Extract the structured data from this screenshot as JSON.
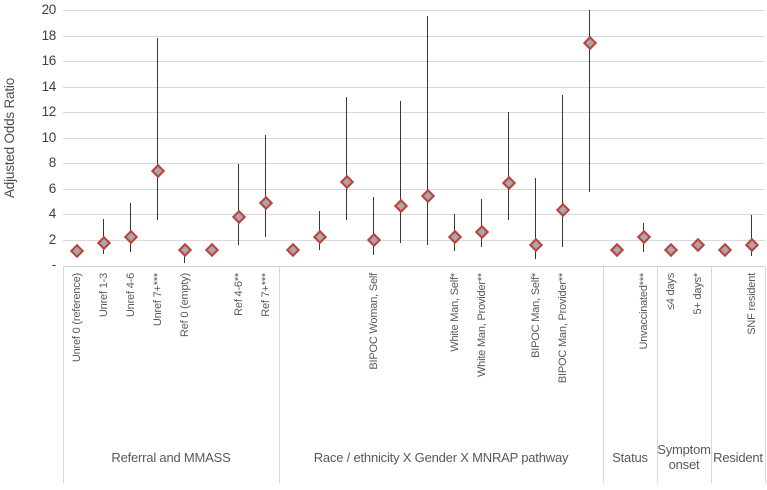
{
  "chart_data": {
    "type": "scatter",
    "subtype": "forest-plot-diamond-markers-with-ci-error-bars",
    "title": "",
    "xlabel": "",
    "ylabel": "Adjusted Odds Ratio",
    "ylim": [
      0,
      20
    ],
    "ytick_step": 2,
    "ytick_zero_label": "-",
    "grid": "horizontal",
    "legend": "none",
    "colors": {
      "marker_fill": "#a8a8a8",
      "marker_stroke": "#c0403c",
      "error_bar": "#383838",
      "gridline": "#d9d9d9",
      "text": "#595959"
    },
    "groups": [
      {
        "label": "Referral and MMASS",
        "points": [
          {
            "label": "Unref 0 (reference)",
            "aor": 1.1,
            "ci_low": null,
            "ci_high": null
          },
          {
            "label": "Unref 1-3",
            "aor": 1.7,
            "ci_low": 0.85,
            "ci_high": 3.6
          },
          {
            "label": "Unref 4-6",
            "aor": 2.2,
            "ci_low": 1.0,
            "ci_high": 4.9
          },
          {
            "label": "Unref 7+***",
            "aor": 7.4,
            "ci_low": 3.5,
            "ci_high": 17.8
          },
          {
            "label": "Ref 0 (empty)",
            "aor": 1.15,
            "ci_low": 0.15,
            "ci_high": 1.15
          },
          {
            "label": "",
            "aor": 1.15,
            "ci_low": null,
            "ci_high": null
          },
          {
            "label": "Ref 4-6**",
            "aor": 3.8,
            "ci_low": 1.6,
            "ci_high": 7.9
          },
          {
            "label": "Ref 7+***",
            "aor": 4.9,
            "ci_low": 2.2,
            "ci_high": 10.2
          }
        ]
      },
      {
        "label": "Race / ethnicity X Gender X MNRAP pathway",
        "points": [
          {
            "label": "",
            "aor": 1.15,
            "ci_low": null,
            "ci_high": null
          },
          {
            "label": "",
            "aor": 2.2,
            "ci_low": 1.2,
            "ci_high": 4.2
          },
          {
            "label": "",
            "aor": 6.5,
            "ci_low": 3.5,
            "ci_high": 13.2
          },
          {
            "label": "BIPOC Woman, Self",
            "aor": 2.0,
            "ci_low": 0.8,
            "ci_high": 5.3
          },
          {
            "label": "",
            "aor": 4.6,
            "ci_low": 1.7,
            "ci_high": 12.9
          },
          {
            "label": "",
            "aor": 5.4,
            "ci_low": 1.6,
            "ci_high": 19.5
          },
          {
            "label": "White Man, Self*",
            "aor": 2.2,
            "ci_low": 1.1,
            "ci_high": 4.0
          },
          {
            "label": "White Man, Provider**",
            "aor": 2.6,
            "ci_low": 1.4,
            "ci_high": 5.2
          },
          {
            "label": "",
            "aor": 6.4,
            "ci_low": 3.5,
            "ci_high": 12.0
          },
          {
            "label": "BIPOC Man, Self*",
            "aor": 1.6,
            "ci_low": 0.5,
            "ci_high": 6.8
          },
          {
            "label": "BIPOC Man, Provider**",
            "aor": 4.3,
            "ci_low": 1.4,
            "ci_high": 13.3
          },
          {
            "label": "",
            "aor": 17.4,
            "ci_low": 5.7,
            "ci_high": 20.0
          }
        ]
      },
      {
        "label": "Status",
        "points": [
          {
            "label": "",
            "aor": 1.15,
            "ci_low": null,
            "ci_high": null
          },
          {
            "label": "Unvaccinated***",
            "aor": 2.2,
            "ci_low": 1.0,
            "ci_high": 3.3
          }
        ]
      },
      {
        "label": "Symptom onset",
        "points": [
          {
            "label": "≤4 days",
            "aor": 1.15,
            "ci_low": null,
            "ci_high": null
          },
          {
            "label": "5+ days*",
            "aor": 1.6,
            "ci_low": null,
            "ci_high": null
          }
        ]
      },
      {
        "label": "Resident",
        "points": [
          {
            "label": "",
            "aor": 1.15,
            "ci_low": null,
            "ci_high": null
          },
          {
            "label": "SNF resident",
            "aor": 1.6,
            "ci_low": 0.7,
            "ci_high": 3.9
          }
        ]
      }
    ]
  }
}
